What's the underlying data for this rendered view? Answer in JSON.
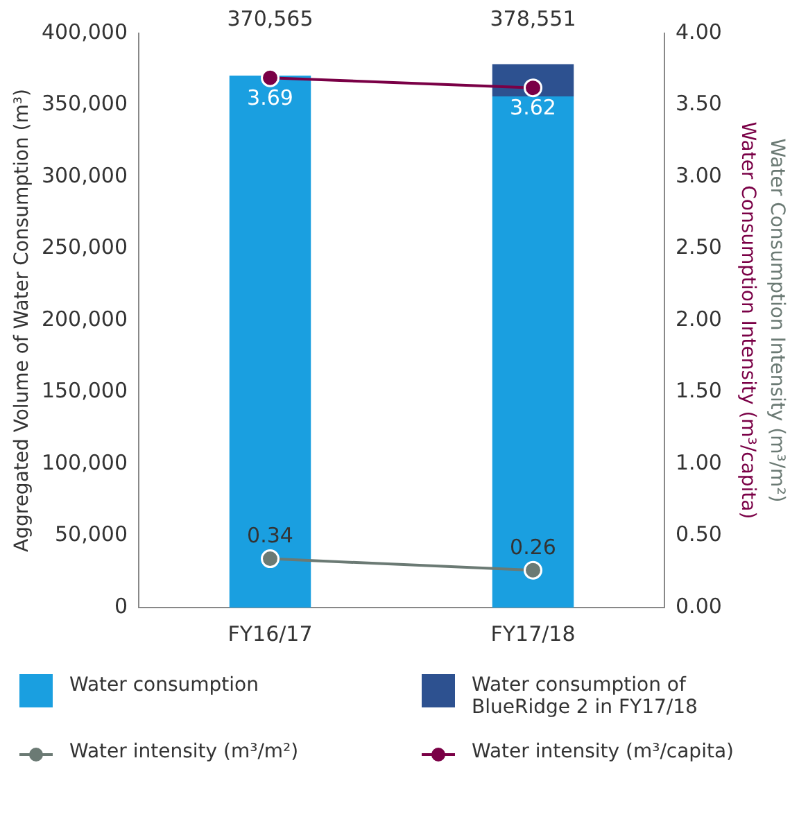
{
  "chart_data": {
    "type": "bar",
    "stacked": true,
    "categories": [
      "FY16/17",
      "FY17/18"
    ],
    "series": [
      {
        "name": "Water consumption",
        "color": "#1a9fe0",
        "values": [
          370565,
          356000
        ]
      },
      {
        "name": "Water consumption of BlueRidge 2 in FY17/18",
        "color": "#2d5190",
        "values": [
          null,
          22551
        ]
      },
      {
        "name": "Water intensity (m³/m²)",
        "type": "line",
        "axis": "y2",
        "color": "#6b7a74",
        "values": [
          0.34,
          0.26
        ],
        "value_labels": [
          "0.34",
          "0.26"
        ]
      },
      {
        "name": "Water intensity (m³/capita)",
        "type": "line",
        "axis": "y2",
        "color": "#7a0046",
        "values": [
          3.69,
          3.62
        ],
        "value_labels": [
          "3.69",
          "3.62"
        ]
      }
    ],
    "totals": [
      "370,565",
      "378,551"
    ],
    "ylabel": "Aggregated Volume of Water Consumption (m³)",
    "y2label": "Water Consumption Intensity (m³/capita)",
    "y3label": "Water Consumption Intensity (m³/m²)",
    "ylim": [
      0,
      400000
    ],
    "yticks": [
      {
        "value": 0,
        "label": "0"
      },
      {
        "value": 50000,
        "label": "50,000"
      },
      {
        "value": 100000,
        "label": "100,000"
      },
      {
        "value": 150000,
        "label": "150,000"
      },
      {
        "value": 200000,
        "label": "200,000"
      },
      {
        "value": 250000,
        "label": "250,000"
      },
      {
        "value": 300000,
        "label": "300,000"
      },
      {
        "value": 350000,
        "label": "350,000"
      },
      {
        "value": 400000,
        "label": "400,000"
      }
    ],
    "y2lim": [
      0,
      4
    ],
    "y2ticks": [
      {
        "value": 0,
        "label": "0.00"
      },
      {
        "value": 0.5,
        "label": "0.50"
      },
      {
        "value": 1,
        "label": "1.00"
      },
      {
        "value": 1.5,
        "label": "1.50"
      },
      {
        "value": 2,
        "label": "2.00"
      },
      {
        "value": 2.5,
        "label": "2.50"
      },
      {
        "value": 3,
        "label": "3.00"
      },
      {
        "value": 3.5,
        "label": "3.50"
      },
      {
        "value": 4,
        "label": "4.00"
      }
    ],
    "grid": false,
    "marker": "circle",
    "legend": "bottom"
  }
}
